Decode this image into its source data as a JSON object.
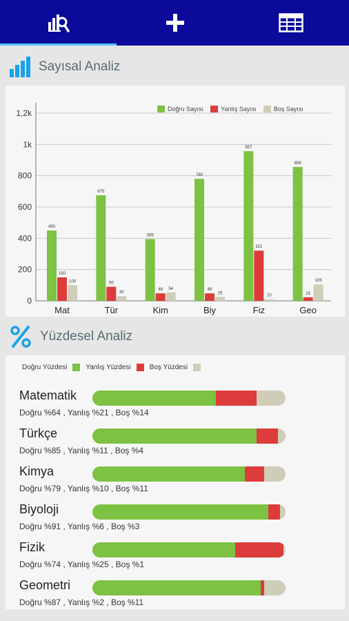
{
  "colors": {
    "topbar": "#0b0a9a",
    "correct": "#7dc243",
    "wrong": "#dc3c3c",
    "blank": "#cfcdb8",
    "accent": "#1aa3e8"
  },
  "tabs": [
    {
      "icon": "analysis-icon",
      "active": true
    },
    {
      "icon": "plus-icon",
      "active": false
    },
    {
      "icon": "table-icon",
      "active": false
    }
  ],
  "numeric_section": {
    "title": "Sayısal Analiz",
    "icon": "bar-chart-icon"
  },
  "percent_section": {
    "title": "Yüzdesel Analiz",
    "icon": "percent-icon"
  },
  "chart_data": {
    "type": "bar",
    "categories": [
      "Mat",
      "Tür",
      "Kim",
      "Biy",
      "Fiz",
      "Geo"
    ],
    "series": [
      {
        "name": "Doğru Sayısı",
        "color": "#7dc243",
        "values": [
          450,
          675,
          395,
          780,
          957,
          856
        ]
      },
      {
        "name": "Yanlış Sayısı",
        "color": "#dc3c3c",
        "values": [
          150,
          90,
          48,
          48,
          321,
          23
        ]
      },
      {
        "name": "Boş Sayısı",
        "color": "#cfcdb8",
        "values": [
          100,
          30,
          54,
          25,
          10,
          105
        ]
      }
    ],
    "data_labels": [
      [
        "450",
        "675",
        "395",
        "780",
        "957",
        "856"
      ],
      [
        "150",
        "90",
        "48",
        "48",
        "321",
        "23"
      ],
      [
        "100",
        "30",
        "54",
        "25",
        "10",
        "105"
      ]
    ],
    "y_ticks": [
      "0",
      "200",
      "400",
      "600",
      "800",
      "1k",
      "1,2k"
    ],
    "y_tick_values": [
      0,
      200,
      400,
      600,
      800,
      1000,
      1200
    ],
    "ylim": [
      0,
      1200
    ],
    "grid": true,
    "legend_position": "top-right"
  },
  "percent_legend": [
    "Doğru Yüzdesi",
    "Yanlış Yüzdesi",
    "Boş Yüzdesi"
  ],
  "subjects": [
    {
      "name": "Matematik",
      "correct": 64,
      "wrong": 21,
      "blank": 14,
      "detail": "Doğru %64 , Yanlış %21 , Boş %14"
    },
    {
      "name": "Türkçe",
      "correct": 85,
      "wrong": 11,
      "blank": 4,
      "detail": "Doğru %85 , Yanlış %11 , Boş %4"
    },
    {
      "name": "Kimya",
      "correct": 79,
      "wrong": 10,
      "blank": 11,
      "detail": "Doğru %79 , Yanlış %10 , Boş %11"
    },
    {
      "name": "Biyoloji",
      "correct": 91,
      "wrong": 6,
      "blank": 3,
      "detail": "Doğru %91 , Yanlış %6 , Boş %3"
    },
    {
      "name": "Fizik",
      "correct": 74,
      "wrong": 25,
      "blank": 1,
      "detail": "Doğru %74 , Yanlış %25 , Boş %1"
    },
    {
      "name": "Geometri",
      "correct": 87,
      "wrong": 2,
      "blank": 11,
      "detail": "Doğru %87 , Yanlış %2 , Boş %11"
    }
  ]
}
